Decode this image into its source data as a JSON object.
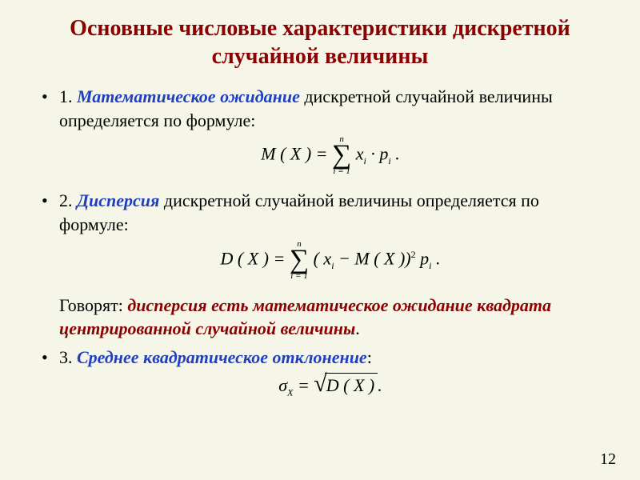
{
  "colors": {
    "background": "#f5f5e8",
    "title": "#8b0000",
    "term": "#1f3fbf",
    "statement": "#8b0000",
    "text": "#000000"
  },
  "fonts": {
    "family": "Times New Roman",
    "title_size": 28,
    "body_size": 22,
    "formula_size": 22
  },
  "title": "Основные числовые характеристики дискретной случайной величины",
  "items": {
    "one": {
      "num": "1. ",
      "term": "Математическое ожидание",
      "rest": " дискретной случайной величины определяется по формуле:",
      "formula": {
        "lhs": "M ( X ) = ",
        "sum_top": "n",
        "sum_bot": "i = 1",
        "body_x": "x",
        "body_sub1": "i",
        "dot": " · ",
        "body_p": "p",
        "body_sub2": "i",
        "end": " ."
      }
    },
    "two": {
      "num": "2. ",
      "term": "Дисперсия",
      "rest": " дискретной случайной  величины определяется  по формуле:",
      "formula": {
        "lhs": "D ( X ) = ",
        "sum_top": "n",
        "sum_bot": "i = 1",
        "open": " ( ",
        "x": "x",
        "sub1": "i",
        "minus": "  −  M ( X ))",
        "sq": "2",
        "sp": "  ",
        "p": "p",
        "sub2": "i",
        "end": " ."
      },
      "say_prefix": "Говорят: ",
      "say_statement": "дисперсия есть математическое ожидание квадрата центрированной случайной величины",
      "say_end": "."
    },
    "three": {
      "num": "3. ",
      "term": "Среднее квадратическое отклонение",
      "rest": ":",
      "formula": {
        "sigma": "σ",
        "sub": "X",
        "eq": "  =  ",
        "body": "D ( X ) ",
        "end": "."
      }
    }
  },
  "page_number": "12"
}
